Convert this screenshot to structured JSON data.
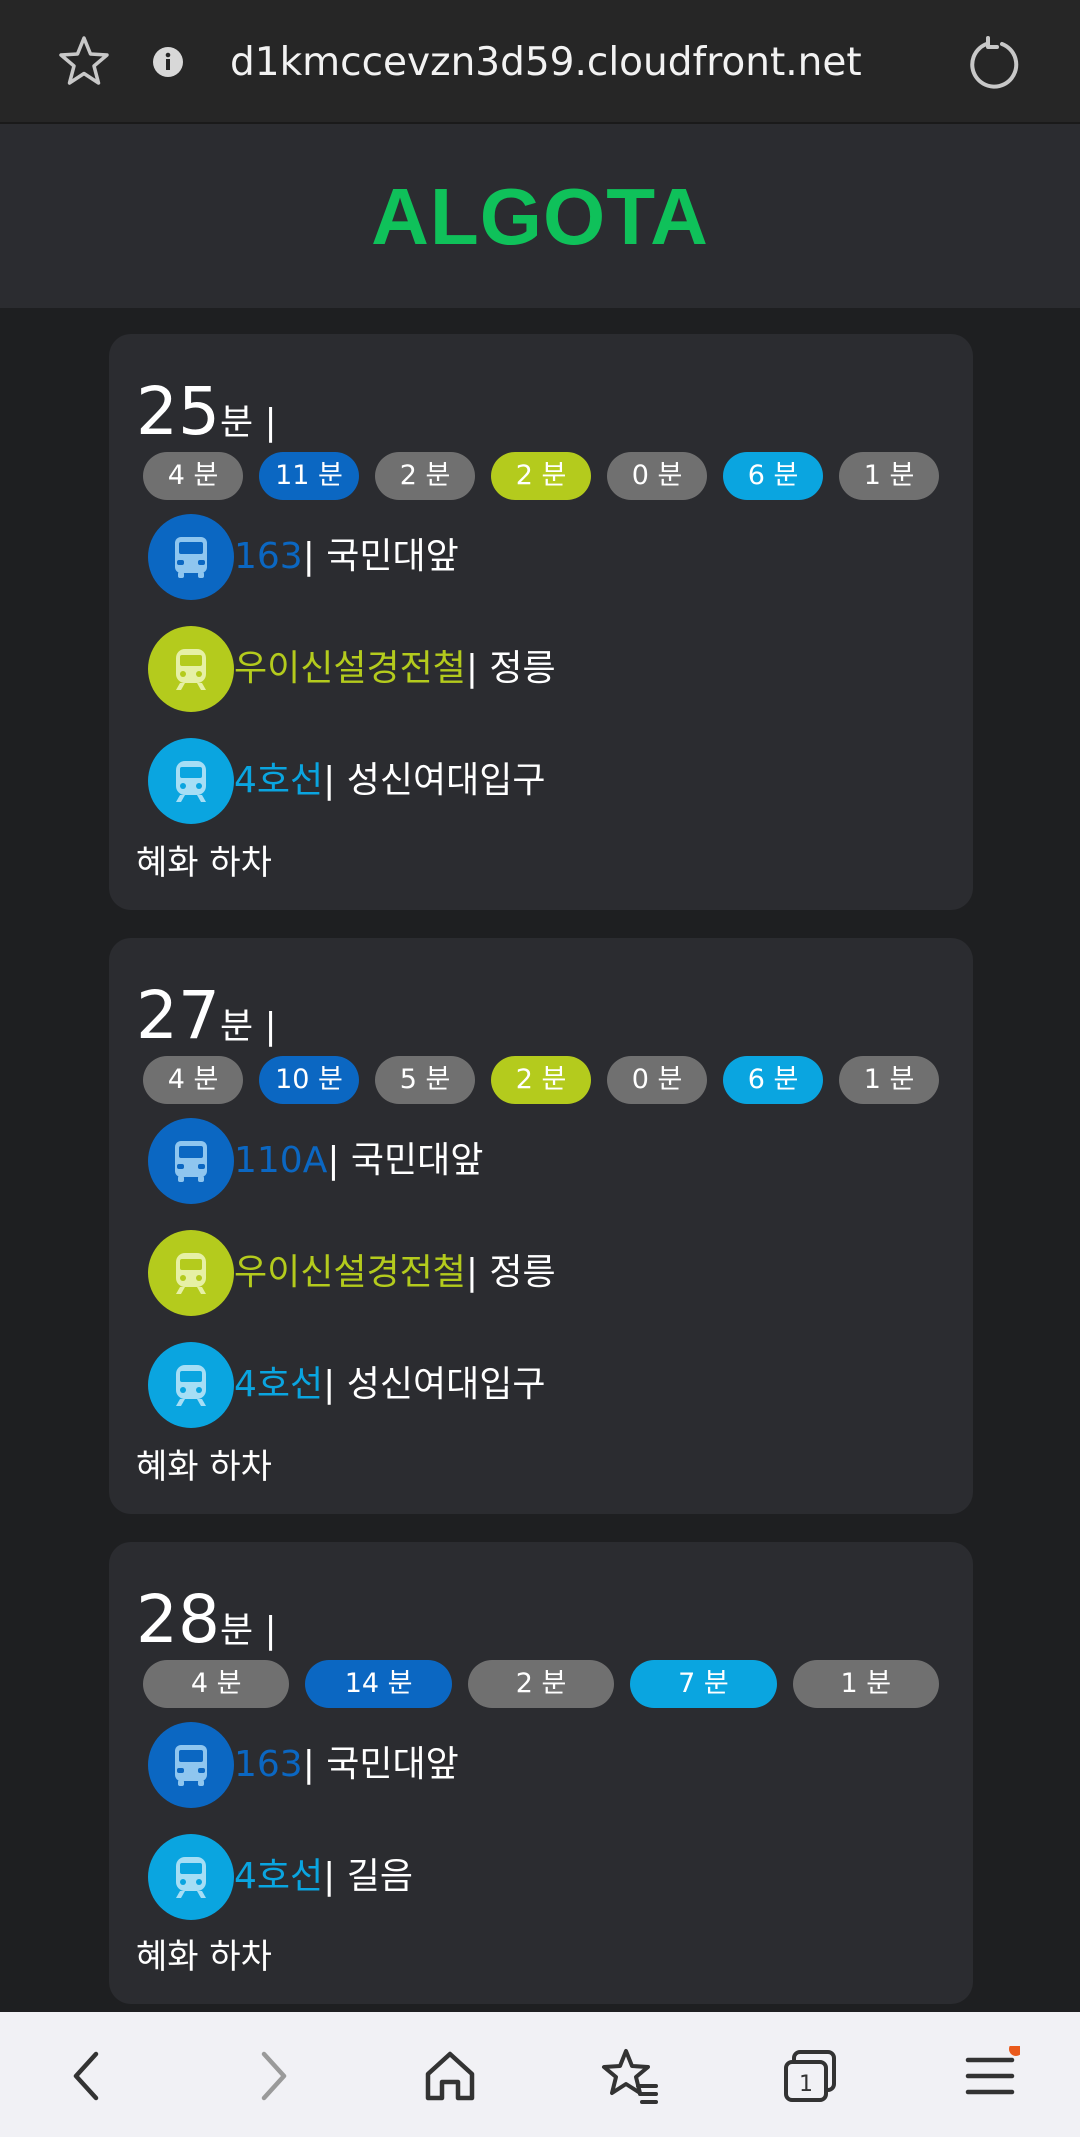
{
  "browser": {
    "url": "d1kmccevzn3d59.cloudfront.net",
    "tab_count": "1"
  },
  "app": {
    "title": "ALGOTA"
  },
  "colors": {
    "bus": "#0b67c2",
    "wooyi": "#b4cb1d",
    "line4": "#0aa5e0",
    "walk": "#707070",
    "brand": "#0fc15a"
  },
  "routes": [
    {
      "total": "25",
      "unit": "분 |",
      "segments": [
        {
          "label": "4 분",
          "kind": "walk"
        },
        {
          "label": "11 분",
          "kind": "bus"
        },
        {
          "label": "2 분",
          "kind": "walk"
        },
        {
          "label": "2 분",
          "kind": "wooyi"
        },
        {
          "label": "0 분",
          "kind": "walk"
        },
        {
          "label": "6 분",
          "kind": "line4"
        },
        {
          "label": "1 분",
          "kind": "walk"
        }
      ],
      "legs": [
        {
          "name": "163",
          "stop": "| 국민대앞",
          "kind": "bus",
          "icon": "bus-icon"
        },
        {
          "name": "우이신설경전철",
          "stop": "| 정릉",
          "kind": "wooyi",
          "icon": "train-icon"
        },
        {
          "name": "4호선",
          "stop": "| 성신여대입구",
          "kind": "line4",
          "icon": "train-icon"
        }
      ],
      "alight": "혜화 하차"
    },
    {
      "total": "27",
      "unit": "분 |",
      "segments": [
        {
          "label": "4 분",
          "kind": "walk"
        },
        {
          "label": "10 분",
          "kind": "bus"
        },
        {
          "label": "5 분",
          "kind": "walk"
        },
        {
          "label": "2 분",
          "kind": "wooyi"
        },
        {
          "label": "0 분",
          "kind": "walk"
        },
        {
          "label": "6 분",
          "kind": "line4"
        },
        {
          "label": "1 분",
          "kind": "walk"
        }
      ],
      "legs": [
        {
          "name": "110A",
          "stop": "| 국민대앞",
          "kind": "bus",
          "icon": "bus-icon"
        },
        {
          "name": "우이신설경전철",
          "stop": "| 정릉",
          "kind": "wooyi",
          "icon": "train-icon"
        },
        {
          "name": "4호선",
          "stop": "| 성신여대입구",
          "kind": "line4",
          "icon": "train-icon"
        }
      ],
      "alight": "혜화 하차"
    },
    {
      "total": "28",
      "unit": "분 |",
      "segments": [
        {
          "label": "4 분",
          "kind": "walk"
        },
        {
          "label": "14 분",
          "kind": "bus"
        },
        {
          "label": "2 분",
          "kind": "walk"
        },
        {
          "label": "7 분",
          "kind": "line4"
        },
        {
          "label": "1 분",
          "kind": "walk"
        }
      ],
      "legs": [
        {
          "name": "163",
          "stop": "| 국민대앞",
          "kind": "bus",
          "icon": "bus-icon"
        },
        {
          "name": "4호선",
          "stop": "| 길음",
          "kind": "line4",
          "icon": "train-icon"
        }
      ],
      "alight": "혜화 하차"
    }
  ]
}
